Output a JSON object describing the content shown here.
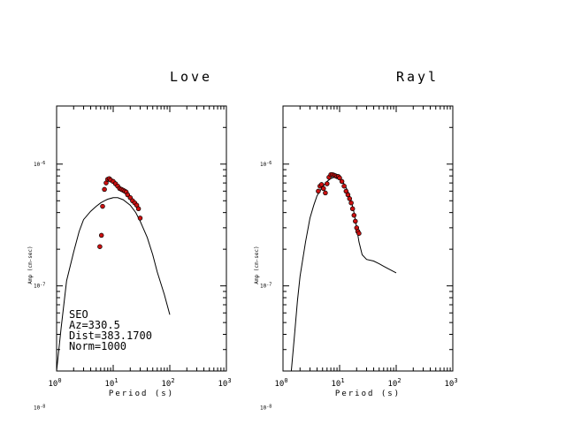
{
  "chart_data": [
    {
      "type": "line",
      "title": "Love",
      "xlabel": "Period (s)",
      "ylabel": "Amp (cm-sec)",
      "xscale": "log",
      "yscale": "log",
      "xlim": [
        1,
        1000
      ],
      "ylim": [
        2e-08,
        3e-06
      ],
      "x_ticks": [
        {
          "value": 1,
          "base": "10",
          "exp": "0"
        },
        {
          "value": 10,
          "base": "10",
          "exp": "1"
        },
        {
          "value": 100,
          "base": "10",
          "exp": "2"
        },
        {
          "value": 1000,
          "base": "10",
          "exp": "3"
        }
      ],
      "y_ticks": [
        {
          "value": 1e-06,
          "base": "10",
          "exp": "-6"
        },
        {
          "value": 1e-07,
          "base": "10",
          "exp": "-7"
        },
        {
          "value": 1e-08,
          "base": "10",
          "exp": "-8"
        }
      ],
      "annotation": [
        "SEO",
        "Az=330.5",
        "Dist=383.1700",
        "Norm=1000"
      ],
      "series": [
        {
          "kind": "line",
          "x": [
            1.0,
            1.2,
            1.5,
            2.0,
            2.5,
            3.0,
            4.0,
            5.0,
            6.0,
            7.0,
            8.0,
            10.0,
            12.0,
            15.0,
            20.0,
            25.0,
            30.0,
            40.0,
            50.0,
            60.0,
            80.0,
            100.0
          ],
          "y": [
            2e-08,
            4.5e-08,
            1.1e-07,
            1.9e-07,
            2.8e-07,
            3.5e-07,
            4.1e-07,
            4.5e-07,
            4.8e-07,
            5e-07,
            5.15e-07,
            5.3e-07,
            5.3e-07,
            5.1e-07,
            4.6e-07,
            4e-07,
            3.4e-07,
            2.5e-07,
            1.8e-07,
            1.3e-07,
            8.5e-08,
            5.8e-08
          ]
        },
        {
          "kind": "scatter",
          "color": "#cc1111",
          "x": [
            5.8,
            6.2,
            6.5,
            7.0,
            7.5,
            8.0,
            8.5,
            9.0,
            10.0,
            11.0,
            12.0,
            13.0,
            14.0,
            15.0,
            16.0,
            17.0,
            18.0,
            20.0,
            22.0,
            24.0,
            26.0,
            28.0,
            30.0
          ],
          "y": [
            2.1e-07,
            2.6e-07,
            4.5e-07,
            6.2e-07,
            7e-07,
            7.5e-07,
            7.6e-07,
            7.4e-07,
            7.2e-07,
            6.9e-07,
            6.6e-07,
            6.3e-07,
            6.2e-07,
            6.1e-07,
            6e-07,
            5.9e-07,
            5.6e-07,
            5.3e-07,
            5e-07,
            4.8e-07,
            4.6e-07,
            4.3e-07,
            3.6e-07
          ]
        }
      ]
    },
    {
      "type": "line",
      "title": "Rayl",
      "xlabel": "Period (s)",
      "ylabel": "Amp (cm-sec)",
      "xscale": "log",
      "yscale": "log",
      "xlim": [
        1,
        1000
      ],
      "ylim": [
        2e-08,
        3e-06
      ],
      "x_ticks": [
        {
          "value": 1,
          "base": "10",
          "exp": "0"
        },
        {
          "value": 10,
          "base": "10",
          "exp": "1"
        },
        {
          "value": 100,
          "base": "10",
          "exp": "2"
        },
        {
          "value": 1000,
          "base": "10",
          "exp": "3"
        }
      ],
      "y_ticks": [
        {
          "value": 1e-06,
          "base": "10",
          "exp": "-6"
        },
        {
          "value": 1e-07,
          "base": "10",
          "exp": "-7"
        },
        {
          "value": 1e-08,
          "base": "10",
          "exp": "-8"
        }
      ],
      "series": [
        {
          "kind": "line",
          "x": [
            1.4,
            1.6,
            1.8,
            2.0,
            2.5,
            3.0,
            3.5,
            4.0,
            5.0,
            6.0,
            7.0,
            8.0,
            9.0,
            10.0,
            12.0,
            14.0,
            16.0,
            18.0,
            20.0,
            22.0,
            25.0,
            30.0,
            40.0,
            50.0,
            60.0,
            80.0,
            100.0
          ],
          "y": [
            2e-08,
            4e-08,
            7.5e-08,
            1.2e-07,
            2.3e-07,
            3.6e-07,
            4.6e-07,
            5.5e-07,
            6.5e-07,
            7.2e-07,
            7.6e-07,
            7.8e-07,
            7.7e-07,
            7.5e-07,
            6.9e-07,
            6e-07,
            5e-07,
            4e-07,
            3e-07,
            2.3e-07,
            1.8e-07,
            1.65e-07,
            1.6e-07,
            1.52e-07,
            1.45e-07,
            1.35e-07,
            1.28e-07
          ]
        },
        {
          "kind": "scatter",
          "color": "#cc1111",
          "x": [
            4.2,
            4.5,
            4.8,
            5.2,
            5.6,
            6.0,
            6.5,
            7.0,
            7.5,
            8.0,
            8.5,
            9.0,
            9.5,
            10.0,
            11.0,
            12.0,
            13.0,
            14.0,
            15.0,
            16.0,
            17.0,
            18.0,
            19.0,
            20.0,
            21.0,
            22.0
          ],
          "y": [
            6e-07,
            6.6e-07,
            6.8e-07,
            6.3e-07,
            5.8e-07,
            6.9e-07,
            7.8e-07,
            8.2e-07,
            8.2e-07,
            8.1e-07,
            8e-07,
            7.9e-07,
            7.9e-07,
            7.7e-07,
            7.2e-07,
            6.6e-07,
            6e-07,
            5.6e-07,
            5.2e-07,
            4.8e-07,
            4.3e-07,
            3.8e-07,
            3.4e-07,
            3e-07,
            2.8e-07,
            2.7e-07
          ]
        }
      ]
    }
  ]
}
